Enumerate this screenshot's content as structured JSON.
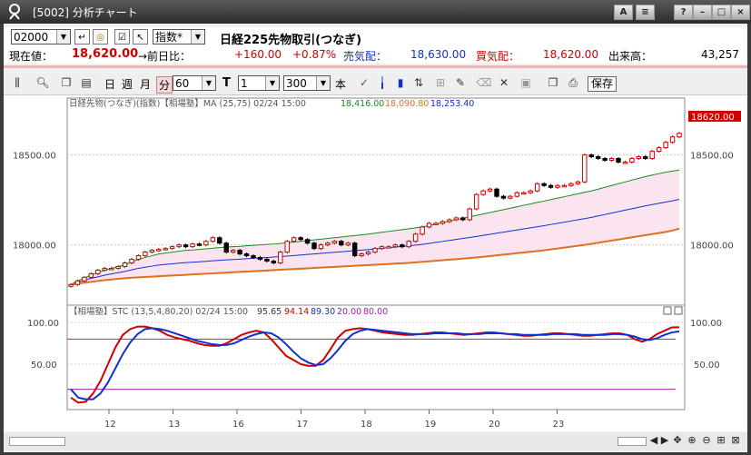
{
  "window": {
    "title": "[5002] 分析チャート",
    "buttons": [
      "A",
      "?",
      "–",
      "□",
      "×"
    ]
  },
  "quote": {
    "code": "02000",
    "instrument_type": "指数*",
    "instrument_name": "日経225先物取引(つなぎ)",
    "current_label": "現在値：",
    "current_value": "18,620.00",
    "change_label": "→前日比：",
    "change_value": "+160.00",
    "change_pct": "+0.87%",
    "ask_label": "売気配：",
    "ask_value": "18,630.00",
    "bid_label": "買気配：",
    "bid_value": "18,620.00",
    "volume_label": "出来高：",
    "volume_value": "43,257"
  },
  "toolbar": {
    "period_day": "日",
    "period_week": "週",
    "period_month": "月",
    "period_min": "分",
    "minute_value": "60",
    "t_label": "T",
    "t_value": "1",
    "count_value": "300",
    "count_unit": "本",
    "save_label": "保存"
  },
  "price_panel": {
    "header_name": "日経先物(つなぎ)(指数)【相場塾】MA (25,75) 02/24 15:00",
    "header_v1": "18,416.00",
    "header_v2": "18,090.80",
    "header_v3": "18,253.40",
    "y_labels": [
      "18500.00",
      "18000.00"
    ],
    "current_tag": "18620.00"
  },
  "osc_panel": {
    "header_name": "【相場塾】STC (13,5,4,80,20) 02/24 15:00",
    "v1": "95.65",
    "v2": "94.14",
    "v3": "89.30",
    "v4": "20.00",
    "v5": "80.00",
    "y_labels": [
      "100.00",
      "50.00"
    ]
  },
  "x_labels": [
    "12",
    "13",
    "16",
    "17",
    "18",
    "19",
    "20",
    "23"
  ],
  "colors": {
    "up": "#d00000",
    "down": "#000000",
    "ma_short": "#1a8a1a",
    "ma_long": "#e07020",
    "band": "#fbe4f0",
    "stc_k": "#d00000",
    "stc_d": "#1030d0",
    "level": "#a020a0"
  },
  "chart_data": [
    {
      "type": "candlestick",
      "title": "",
      "ylim": [
        17620,
        18740
      ],
      "close": [
        17780,
        17800,
        17820,
        17840,
        17860,
        17870,
        17870,
        17880,
        17900,
        17920,
        17940,
        17960,
        17970,
        17975,
        17980,
        17990,
        18000,
        17990,
        18005,
        18000,
        18020,
        18040,
        18010,
        17960,
        17970,
        17950,
        17940,
        17930,
        17920,
        17910,
        17900,
        17960,
        18020,
        18040,
        18030,
        18010,
        17980,
        18000,
        18010,
        18020,
        18000,
        18010,
        17940,
        17950,
        17960,
        17980,
        17990,
        17990,
        18000,
        17990,
        18020,
        18060,
        18100,
        18120,
        18120,
        18130,
        18140,
        18150,
        18140,
        18200,
        18280,
        18300,
        18310,
        18270,
        18260,
        18270,
        18290,
        18290,
        18300,
        18340,
        18330,
        18320,
        18330,
        18330,
        18340,
        18350,
        18500,
        18490,
        18480,
        18470,
        18480,
        18460,
        18460,
        18480,
        18490,
        18480,
        18520,
        18540,
        18570,
        18600,
        18620
      ],
      "ma_short": [
        17780,
        17800,
        17815,
        17835,
        17845,
        17860,
        17870,
        17880,
        17890,
        17905,
        17920,
        17930,
        17940,
        17950,
        17955,
        17960,
        17965,
        17970,
        17972,
        17975,
        17978,
        17982,
        17985,
        17988,
        17990,
        17992,
        17995,
        17998,
        18000,
        18003,
        18005,
        18008,
        18012,
        18016,
        18020,
        18024,
        18028,
        18032,
        18036,
        18040,
        18044,
        18048,
        18052,
        18056,
        18060,
        18065,
        18070,
        18075,
        18080,
        18085,
        18090,
        18095,
        18100,
        18108,
        18116,
        18124,
        18132,
        18140,
        18148,
        18156,
        18164,
        18172,
        18180,
        18188,
        18196,
        18204,
        18212,
        18220,
        18228,
        18236,
        18244,
        18252,
        18260,
        18268,
        18276,
        18284,
        18292,
        18300,
        18310,
        18320,
        18330,
        18340,
        18350,
        18360,
        18370,
        18380,
        18388,
        18396,
        18404,
        18410,
        18416
      ],
      "ma_long": [
        17780,
        17785,
        17790,
        17795,
        17800,
        17804,
        17808,
        17812,
        17815,
        17818,
        17820,
        17822,
        17824,
        17826,
        17828,
        17830,
        17832,
        17834,
        17836,
        17838,
        17840,
        17842,
        17844,
        17846,
        17848,
        17850,
        17852,
        17854,
        17856,
        17858,
        17860,
        17862,
        17864,
        17866,
        17868,
        17870,
        17872,
        17874,
        17876,
        17878,
        17880,
        17882,
        17884,
        17886,
        17888,
        17890,
        17892,
        17894,
        17896,
        17898,
        17900,
        17903,
        17906,
        17909,
        17912,
        17915,
        17918,
        17921,
        17924,
        17927,
        17930,
        17934,
        17938,
        17942,
        17946,
        17950,
        17954,
        17958,
        17962,
        17966,
        17970,
        17975,
        17980,
        17985,
        17990,
        17995,
        18000,
        18006,
        18012,
        18018,
        18024,
        18030,
        18036,
        18042,
        18048,
        18054,
        18060,
        18066,
        18072,
        18080,
        18090.8
      ]
    },
    {
      "type": "line",
      "title": "",
      "ylim": [
        0,
        100
      ],
      "hlines": [
        80,
        20
      ],
      "series": [
        {
          "values": [
            10,
            4,
            5,
            15,
            30,
            50,
            70,
            85,
            92,
            95,
            95,
            93,
            90,
            85,
            82,
            80,
            78,
            75,
            73,
            72,
            72,
            75,
            80,
            85,
            88,
            90,
            88,
            80,
            70,
            60,
            55,
            50,
            48,
            48,
            55,
            68,
            82,
            90,
            92,
            93,
            92,
            90,
            88,
            87,
            86,
            85,
            85,
            86,
            87,
            88,
            88,
            87,
            86,
            85,
            86,
            87,
            88,
            88,
            87,
            86,
            85,
            84,
            84,
            85,
            86,
            87,
            87,
            86,
            85,
            84,
            84,
            85,
            86,
            87,
            87,
            85,
            80,
            77,
            80,
            86,
            90,
            94,
            94.14
          ]
        },
        {
          "values": [
            20,
            10,
            8,
            8,
            15,
            28,
            45,
            62,
            76,
            86,
            92,
            93,
            92,
            90,
            87,
            84,
            81,
            78,
            76,
            74,
            73,
            73,
            75,
            79,
            83,
            86,
            88,
            87,
            82,
            74,
            65,
            57,
            52,
            49,
            50,
            57,
            67,
            78,
            86,
            90,
            92,
            91,
            90,
            89,
            88,
            87,
            86,
            86,
            86,
            87,
            87,
            87,
            87,
            86,
            86,
            86,
            87,
            87,
            87,
            86,
            86,
            85,
            85,
            85,
            85,
            86,
            86,
            86,
            86,
            85,
            85,
            85,
            85,
            86,
            86,
            85,
            83,
            80,
            79,
            81,
            85,
            88,
            89.3
          ]
        }
      ]
    }
  ]
}
